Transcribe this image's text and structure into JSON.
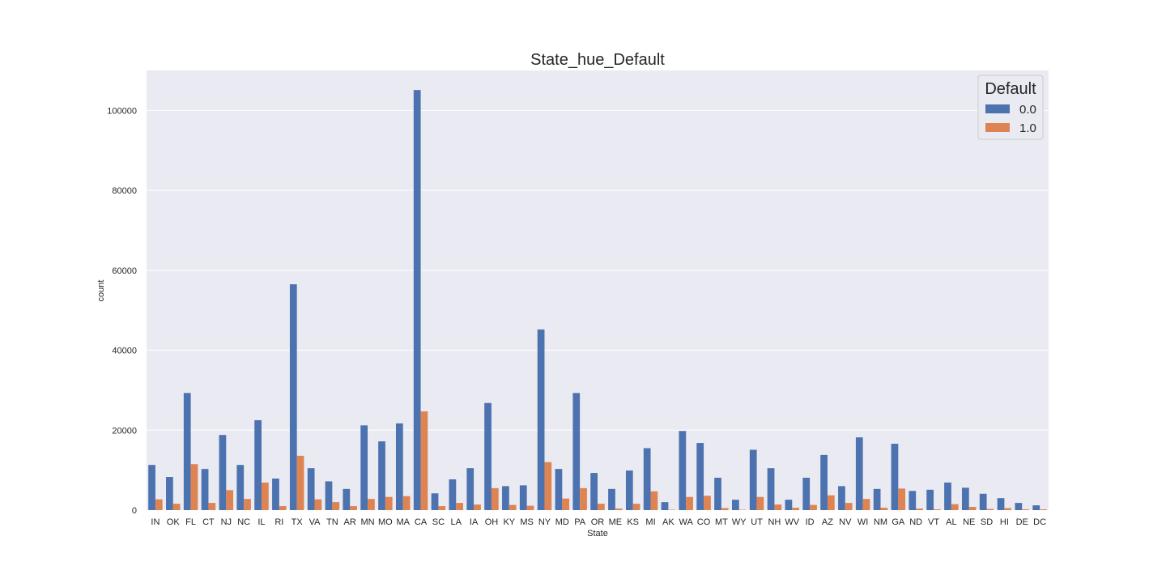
{
  "chart_data": {
    "type": "bar",
    "title": "State_hue_Default",
    "xlabel": "State",
    "ylabel": "count",
    "ylim": [
      0,
      110000
    ],
    "yticks": [
      0,
      20000,
      40000,
      60000,
      80000,
      100000
    ],
    "grid": true,
    "legend": {
      "title": "Default",
      "position": "top-right"
    },
    "categories": [
      "IN",
      "OK",
      "FL",
      "CT",
      "NJ",
      "NC",
      "IL",
      "RI",
      "TX",
      "VA",
      "TN",
      "AR",
      "MN",
      "MO",
      "MA",
      "CA",
      "SC",
      "LA",
      "IA",
      "OH",
      "KY",
      "MS",
      "NY",
      "MD",
      "PA",
      "OR",
      "ME",
      "KS",
      "MI",
      "AK",
      "WA",
      "CO",
      "MT",
      "WY",
      "UT",
      "NH",
      "WV",
      "ID",
      "AZ",
      "NV",
      "WI",
      "NM",
      "GA",
      "ND",
      "VT",
      "AL",
      "NE",
      "SD",
      "HI",
      "DE",
      "DC"
    ],
    "series": [
      {
        "name": "0.0",
        "color": "#4c72b0",
        "values": [
          11300,
          8300,
          29300,
          10300,
          18800,
          11300,
          22500,
          7900,
          56500,
          10500,
          7200,
          5300,
          21200,
          17200,
          21700,
          105100,
          4200,
          7700,
          10500,
          26800,
          6000,
          6200,
          45200,
          10300,
          29300,
          9300,
          5300,
          9900,
          15500,
          2000,
          19800,
          16800,
          8100,
          2600,
          15100,
          10500,
          2600,
          8100,
          13800,
          6000,
          18200,
          5300,
          16600,
          4800,
          5100,
          6900,
          5600,
          4100,
          3000,
          1800,
          1200
        ]
      },
      {
        "name": "1.0",
        "color": "#dd8452",
        "values": [
          2700,
          1600,
          11500,
          1800,
          5000,
          2800,
          6900,
          1000,
          13600,
          2700,
          2000,
          1000,
          2800,
          3300,
          3500,
          24700,
          1000,
          1800,
          1400,
          5500,
          1300,
          1100,
          12000,
          2900,
          5500,
          1600,
          400,
          1600,
          4700,
          100,
          3300,
          3600,
          500,
          100,
          3300,
          1400,
          600,
          1300,
          3700,
          1800,
          2800,
          600,
          5400,
          400,
          200,
          1500,
          800,
          300,
          500,
          200,
          200
        ]
      }
    ]
  }
}
